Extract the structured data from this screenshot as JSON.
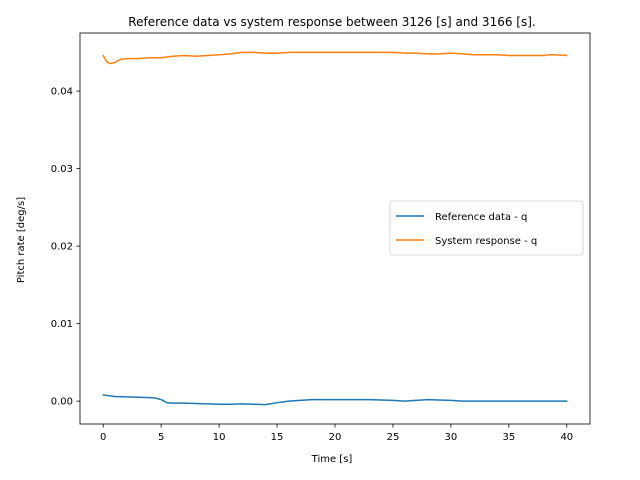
{
  "chart_data": {
    "type": "line",
    "title": "Reference data vs system response between 3126 [s] and 3166 [s].",
    "xlabel": "Time [s]",
    "ylabel": "Pitch rate [deg/s]",
    "xlim": [
      -2.0,
      42.0
    ],
    "ylim": [
      -0.00295,
      0.0475
    ],
    "xticks": [
      0,
      5,
      10,
      15,
      20,
      25,
      30,
      35,
      40
    ],
    "xtick_labels": [
      "0",
      "5",
      "10",
      "15",
      "20",
      "25",
      "30",
      "35",
      "40"
    ],
    "yticks": [
      0.0,
      0.01,
      0.02,
      0.03,
      0.04
    ],
    "ytick_labels": [
      "0.00",
      "0.01",
      "0.02",
      "0.03",
      "0.04"
    ],
    "grid": false,
    "legend_position": "center-right",
    "series": [
      {
        "name": "Reference data - q",
        "color": "#1f77b4",
        "x": [
          0,
          1,
          2,
          3,
          4,
          4.5,
          5,
          5.5,
          6,
          7,
          8,
          9,
          10,
          11,
          12,
          13,
          14,
          15,
          16,
          17,
          18,
          19,
          20,
          21,
          22,
          23,
          24,
          25,
          26,
          27,
          28,
          29,
          30,
          31,
          32,
          33,
          34,
          35,
          36,
          37,
          38,
          39,
          40
        ],
        "y": [
          0.0008,
          0.0006,
          0.00055,
          0.0005,
          0.00045,
          0.0004,
          0.0002,
          -0.0002,
          -0.00025,
          -0.00025,
          -0.0003,
          -0.00035,
          -0.0004,
          -0.0004,
          -0.00035,
          -0.0004,
          -0.00045,
          -0.0002,
          0.0,
          0.0001,
          0.0002,
          0.0002,
          0.0002,
          0.0002,
          0.0002,
          0.0002,
          0.00015,
          0.0001,
          0.0,
          0.0001,
          0.0002,
          0.00015,
          0.0001,
          0.0,
          0.0,
          0.0,
          0.0,
          0.0,
          0.0,
          0.0,
          0.0,
          0.0,
          0.0
        ]
      },
      {
        "name": "System response - q",
        "color": "#ff7f0e",
        "x": [
          0,
          0.3,
          0.6,
          1,
          1.5,
          2,
          3,
          4,
          5,
          5.5,
          6,
          7,
          8,
          9,
          10,
          11,
          12,
          13,
          14,
          15,
          16,
          17,
          18,
          19,
          20,
          21,
          22,
          23,
          24,
          25,
          26,
          27,
          28,
          29,
          30,
          31,
          32,
          33,
          34,
          35,
          36,
          37,
          38,
          38.5,
          39,
          40
        ],
        "y": [
          0.0446,
          0.0438,
          0.04355,
          0.0437,
          0.0441,
          0.0442,
          0.0442,
          0.0443,
          0.0443,
          0.0444,
          0.0445,
          0.0446,
          0.0445,
          0.0446,
          0.0447,
          0.0448,
          0.045,
          0.045,
          0.0449,
          0.0449,
          0.045,
          0.045,
          0.045,
          0.045,
          0.045,
          0.045,
          0.045,
          0.045,
          0.045,
          0.045,
          0.0449,
          0.0449,
          0.0448,
          0.0448,
          0.0449,
          0.0448,
          0.0447,
          0.0447,
          0.0447,
          0.0446,
          0.0446,
          0.0446,
          0.0446,
          0.0447,
          0.0447,
          0.0446
        ]
      }
    ]
  }
}
